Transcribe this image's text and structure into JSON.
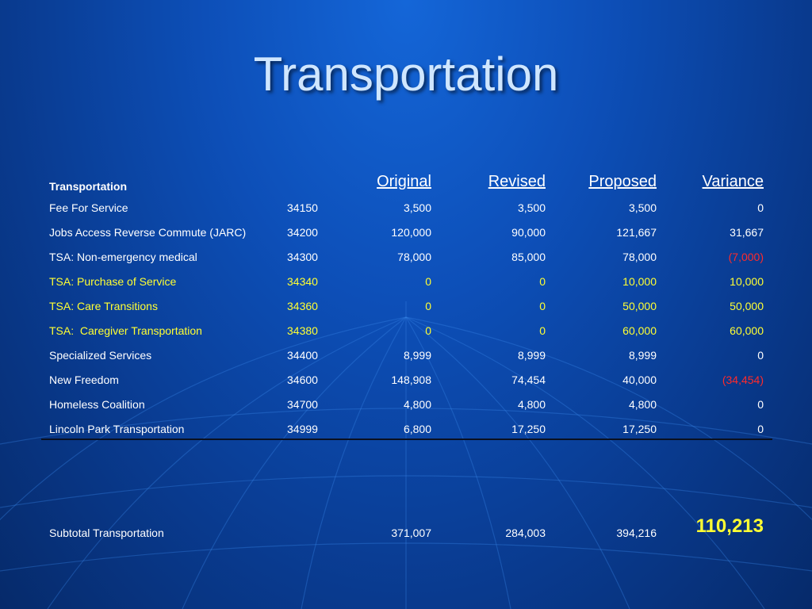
{
  "slide": {
    "title": "Transportation"
  },
  "table": {
    "headers": {
      "name": "Transportation",
      "original": "Original",
      "revised": "Revised",
      "proposed": "Proposed",
      "variance": "Variance"
    },
    "rows": [
      {
        "name": "Fee For Service",
        "account": "34150",
        "original": "3,500",
        "revised": "3,500",
        "proposed": "3,500",
        "variance": "0",
        "highlight": false,
        "negative": false
      },
      {
        "name": "Jobs Access Reverse Commute (JARC)",
        "account": "34200",
        "original": "120,000",
        "revised": "90,000",
        "proposed": "121,667",
        "variance": "31,667",
        "highlight": false,
        "negative": false
      },
      {
        "name": "TSA: Non-emergency medical",
        "account": "34300",
        "original": "78,000",
        "revised": "85,000",
        "proposed": "78,000",
        "variance": "(7,000)",
        "highlight": false,
        "negative": true
      },
      {
        "name": "TSA: Purchase of Service",
        "account": "34340",
        "original": "0",
        "revised": "0",
        "proposed": "10,000",
        "variance": "10,000",
        "highlight": true,
        "negative": false
      },
      {
        "name": "TSA: Care Transitions",
        "account": "34360",
        "original": "0",
        "revised": "0",
        "proposed": "50,000",
        "variance": "50,000",
        "highlight": true,
        "negative": false
      },
      {
        "name": "TSA:  Caregiver Transportation",
        "account": "34380",
        "original": "0",
        "revised": "0",
        "proposed": "60,000",
        "variance": "60,000",
        "highlight": true,
        "negative": false
      },
      {
        "name": "Specialized Services",
        "account": "34400",
        "original": "8,999",
        "revised": "8,999",
        "proposed": "8,999",
        "variance": "0",
        "highlight": false,
        "negative": false
      },
      {
        "name": "New Freedom",
        "account": "34600",
        "original": "148,908",
        "revised": "74,454",
        "proposed": "40,000",
        "variance": "(34,454)",
        "highlight": false,
        "negative": true
      },
      {
        "name": "Homeless Coalition",
        "account": "34700",
        "original": "4,800",
        "revised": "4,800",
        "proposed": "4,800",
        "variance": "0",
        "highlight": false,
        "negative": false
      },
      {
        "name": "Lincoln Park Transportation",
        "account": "34999",
        "original": "6,800",
        "revised": "17,250",
        "proposed": "17,250",
        "variance": "0",
        "highlight": false,
        "negative": false
      }
    ],
    "subtotal": {
      "name": "Subtotal Transportation",
      "original": "371,007",
      "revised": "284,003",
      "proposed": "394,216",
      "variance": "110,213"
    }
  },
  "colors": {
    "highlight_text": "#ffff33",
    "negative_text": "#ff2a2a",
    "title_text": "#cfe6ff"
  }
}
